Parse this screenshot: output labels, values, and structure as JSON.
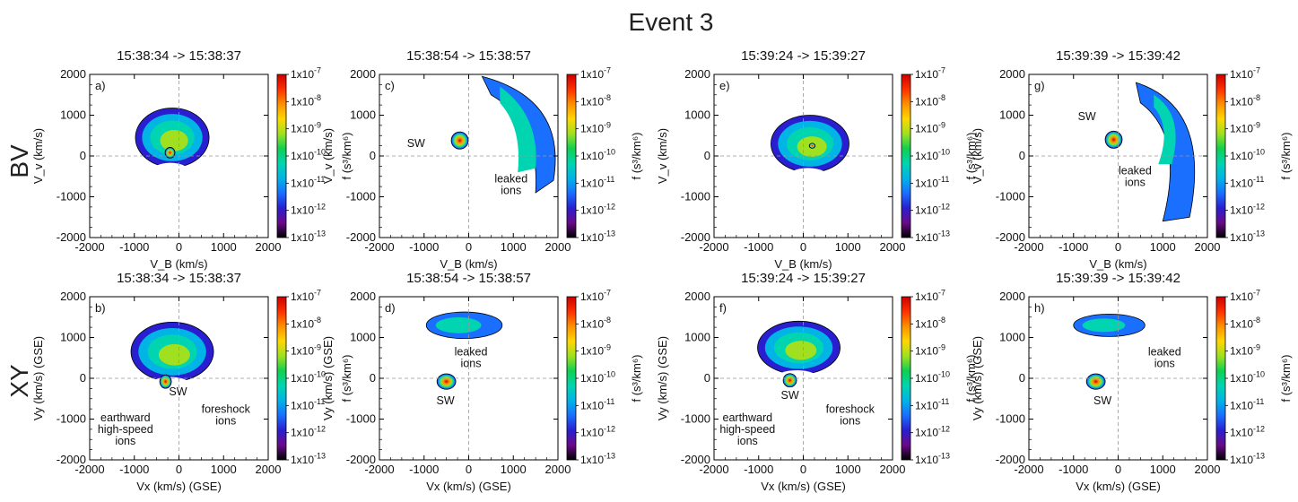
{
  "figure": {
    "title": "Event 3",
    "row_labels": [
      "BV",
      "XY"
    ]
  },
  "colorbar": {
    "ticks": [
      "1x10-7",
      "1x10-8",
      "1x10-9",
      "1x10-10",
      "1x10-11",
      "1x10-12",
      "1x10-13"
    ],
    "label": "f (s³/km⁶)",
    "colors": [
      "#000000",
      "#6a0a8a",
      "#2a1fd0",
      "#1a6fff",
      "#00b4e6",
      "#00d4b0",
      "#10d050",
      "#a0e020",
      "#ffd700",
      "#ff9000",
      "#ff3000",
      "#cc0000"
    ]
  },
  "tick_values": [
    -2000,
    -1000,
    0,
    1000,
    2000
  ],
  "chart_data": [
    {
      "type": "heatmap",
      "panel": "a)",
      "row": 0,
      "col": 0,
      "time_range": "15:38:34 -> 15:38:37",
      "xlabel": "V_B (km/s)",
      "ylabel": "V_v (km/s)",
      "xlim": [
        -2000,
        2000
      ],
      "ylim": [
        -2000,
        2000
      ],
      "zlim": [
        "1x10-13",
        "1x10-7"
      ],
      "zscale": "log",
      "annotations": []
    },
    {
      "type": "heatmap",
      "panel": "c)",
      "row": 0,
      "col": 1,
      "time_range": "15:38:54 -> 15:38:57",
      "xlabel": "V_B (km/s)",
      "ylabel": "V_v (km/s)",
      "xlim": [
        -2000,
        2000
      ],
      "ylim": [
        -2000,
        2000
      ],
      "zlim": [
        "1x10-13",
        "1x10-7"
      ],
      "zscale": "log",
      "annotations": [
        "SW",
        "leaked ions"
      ]
    },
    {
      "type": "heatmap",
      "panel": "e)",
      "row": 0,
      "col": 2,
      "time_range": "15:39:24 -> 15:39:27",
      "xlabel": "V_B (km/s)",
      "ylabel": "V_v (km/s)",
      "xlim": [
        -2000,
        2000
      ],
      "ylim": [
        -2000,
        2000
      ],
      "zlim": [
        "1x10-13",
        "1x10-7"
      ],
      "zscale": "log",
      "annotations": []
    },
    {
      "type": "heatmap",
      "panel": "g)",
      "row": 0,
      "col": 3,
      "time_range": "15:39:39 -> 15:39:42",
      "xlabel": "V_B (km/s)",
      "ylabel": "V_v (km/s)",
      "xlim": [
        -2000,
        2000
      ],
      "ylim": [
        -2000,
        2000
      ],
      "zlim": [
        "1x10-13",
        "1x10-7"
      ],
      "zscale": "log",
      "annotations": [
        "SW",
        "leaked ions"
      ]
    },
    {
      "type": "heatmap",
      "panel": "b)",
      "row": 1,
      "col": 0,
      "time_range": "15:38:34 -> 15:38:37",
      "xlabel": "Vx (km/s) (GSE)",
      "ylabel": "Vy (km/s) (GSE)",
      "xlim": [
        -2000,
        2000
      ],
      "ylim": [
        -2000,
        2000
      ],
      "zlim": [
        "1x10-13",
        "1x10-7"
      ],
      "zscale": "log",
      "annotations": [
        "SW",
        "earthward high-speed ions",
        "foreshock ions"
      ]
    },
    {
      "type": "heatmap",
      "panel": "d)",
      "row": 1,
      "col": 1,
      "time_range": "15:38:54 -> 15:38:57",
      "xlabel": "Vx (km/s) (GSE)",
      "ylabel": "Vy (km/s) (GSE)",
      "xlim": [
        -2000,
        2000
      ],
      "ylim": [
        -2000,
        2000
      ],
      "zlim": [
        "1x10-13",
        "1x10-7"
      ],
      "zscale": "log",
      "annotations": [
        "SW",
        "leaked ions"
      ]
    },
    {
      "type": "heatmap",
      "panel": "f)",
      "row": 1,
      "col": 2,
      "time_range": "15:39:24 -> 15:39:27",
      "xlabel": "Vx (km/s) (GSE)",
      "ylabel": "Vy (km/s) (GSE)",
      "xlim": [
        -2000,
        2000
      ],
      "ylim": [
        -2000,
        2000
      ],
      "zlim": [
        "1x10-13",
        "1x10-7"
      ],
      "zscale": "log",
      "annotations": [
        "SW",
        "earthward high-speed ions",
        "foreshock ions"
      ]
    },
    {
      "type": "heatmap",
      "panel": "h)",
      "row": 1,
      "col": 3,
      "time_range": "15:39:39 -> 15:39:42",
      "xlabel": "Vx (km/s) (GSE)",
      "ylabel": "Vy (km/s) (GSE)",
      "xlim": [
        -2000,
        2000
      ],
      "ylim": [
        -2000,
        2000
      ],
      "zlim": [
        "1x10-13",
        "1x10-7"
      ],
      "zscale": "log",
      "annotations": [
        "SW",
        "leaked ions"
      ]
    }
  ]
}
